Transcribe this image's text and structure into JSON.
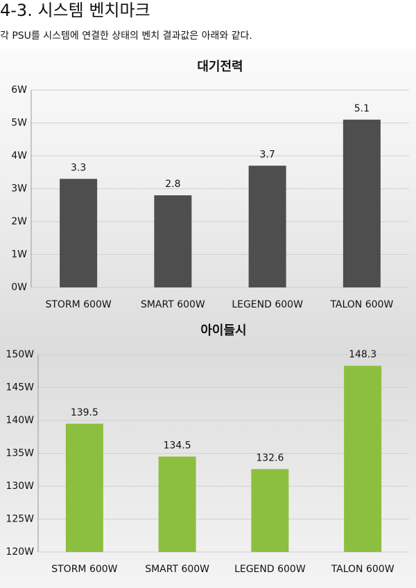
{
  "heading": "4-3. 시스템 벤치마크",
  "intro": "각 PSU를 시스템에 연결한 상태의 벤치 결과값은 아래와 같다.",
  "chart_data": [
    {
      "type": "bar",
      "title": "대기전력",
      "categories": [
        "STORM 600W",
        "SMART 600W",
        "LEGEND 600W",
        "TALON 600W"
      ],
      "values": [
        3.3,
        2.8,
        3.7,
        5.1
      ],
      "color": "#4e4e4e",
      "ylim": [
        0,
        6
      ],
      "yticks": [
        {
          "value": 0,
          "label": "0W"
        },
        {
          "value": 1,
          "label": "1W"
        },
        {
          "value": 2,
          "label": "2W"
        },
        {
          "value": 3,
          "label": "3W"
        },
        {
          "value": 4,
          "label": "4W"
        },
        {
          "value": 5,
          "label": "5W"
        },
        {
          "value": 6,
          "label": "6W"
        }
      ],
      "grid": true
    },
    {
      "type": "bar",
      "title": "아이들시",
      "categories": [
        "STORM 600W",
        "SMART 600W",
        "LEGEND 600W",
        "TALON 600W"
      ],
      "values": [
        139.5,
        134.5,
        132.6,
        148.3
      ],
      "color": "#8cbf3f",
      "ylim": [
        120,
        150
      ],
      "yticks": [
        {
          "value": 120,
          "label": "120W"
        },
        {
          "value": 125,
          "label": "125W"
        },
        {
          "value": 130,
          "label": "130W"
        },
        {
          "value": 135,
          "label": "135W"
        },
        {
          "value": 140,
          "label": "140W"
        },
        {
          "value": 145,
          "label": "145W"
        },
        {
          "value": 150,
          "label": "150W"
        }
      ],
      "grid": true
    }
  ]
}
